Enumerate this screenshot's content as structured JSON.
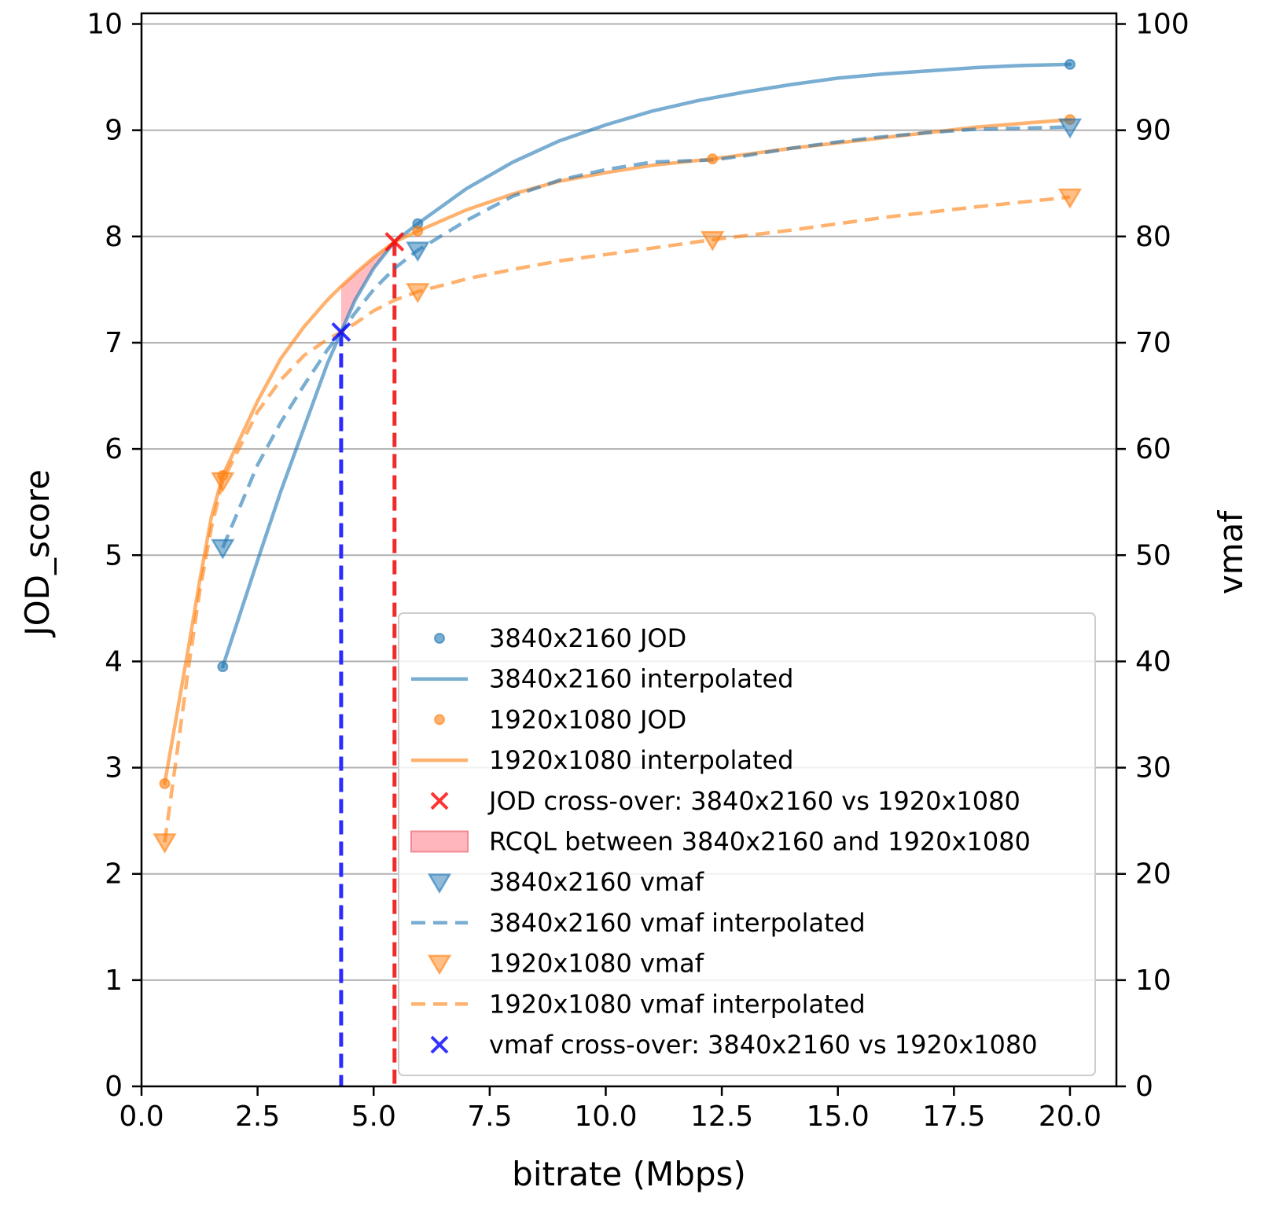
{
  "chart_data": {
    "type": "line",
    "title": "",
    "xlabel": "bitrate (Mbps)",
    "ylabel_left": "JOD_score",
    "ylabel_right": "vmaf",
    "xlim": [
      0.0,
      21.0
    ],
    "ylim_left": [
      0,
      10.1
    ],
    "ylim_right": [
      0,
      101
    ],
    "x_ticks": [
      0.0,
      2.5,
      5.0,
      7.5,
      10.0,
      12.5,
      15.0,
      17.5,
      20.0
    ],
    "x_tick_labels": [
      "0.0",
      "2.5",
      "5.0",
      "7.5",
      "10.0",
      "12.5",
      "15.0",
      "17.5",
      "20.0"
    ],
    "y_left_ticks": [
      0,
      1,
      2,
      3,
      4,
      5,
      6,
      7,
      8,
      9,
      10
    ],
    "y_left_tick_labels": [
      "0",
      "1",
      "2",
      "3",
      "4",
      "5",
      "6",
      "7",
      "8",
      "9",
      "10"
    ],
    "y_right_ticks": [
      0,
      10,
      20,
      30,
      40,
      50,
      60,
      70,
      80,
      90,
      100
    ],
    "y_right_tick_labels": [
      "0",
      "10",
      "20",
      "30",
      "40",
      "50",
      "60",
      "70",
      "80",
      "90",
      "100"
    ],
    "grid": "horizontal",
    "legend_position": "lower-right",
    "colors": {
      "blue": "#1f77b4",
      "orange": "#ff7f0e",
      "red_cross": "#ff0000",
      "blue_cross": "#0000ff",
      "rcql_fill": "#ffb6bd"
    },
    "series": [
      {
        "name": "3840x2160 JOD",
        "kind": "points",
        "axis": "left",
        "color": "#1f77b4",
        "x": [
          1.75,
          5.95,
          20.0
        ],
        "y": [
          3.95,
          8.12,
          9.62
        ]
      },
      {
        "name": "3840x2160 interpolated",
        "kind": "line",
        "axis": "left",
        "color": "#1f77b4",
        "x": [
          1.75,
          2.5,
          3.0,
          3.5,
          4.0,
          4.3,
          4.6,
          5.0,
          5.45,
          5.95,
          7.0,
          8.0,
          9.0,
          10.0,
          11.0,
          12.0,
          13.0,
          14.0,
          15.0,
          16.0,
          17.0,
          18.0,
          19.0,
          20.0
        ],
        "y": [
          3.95,
          4.95,
          5.6,
          6.2,
          6.8,
          7.1,
          7.4,
          7.7,
          7.95,
          8.12,
          8.45,
          8.7,
          8.9,
          9.05,
          9.18,
          9.28,
          9.36,
          9.43,
          9.49,
          9.53,
          9.56,
          9.59,
          9.61,
          9.62
        ]
      },
      {
        "name": "1920x1080 JOD",
        "kind": "points",
        "axis": "left",
        "color": "#ff7f0e",
        "x": [
          0.5,
          1.75,
          5.95,
          12.3,
          20.0
        ],
        "y": [
          2.85,
          5.75,
          8.05,
          8.73,
          9.1
        ]
      },
      {
        "name": "1920x1080 interpolated",
        "kind": "line",
        "axis": "left",
        "color": "#ff7f0e",
        "x": [
          0.5,
          0.8,
          1.0,
          1.25,
          1.5,
          1.75,
          2.5,
          3.0,
          3.5,
          4.0,
          4.3,
          4.6,
          5.0,
          5.45,
          5.95,
          7.0,
          8.0,
          9.0,
          10.0,
          11.0,
          12.3,
          14.0,
          16.0,
          18.0,
          20.0
        ],
        "y": [
          2.85,
          3.6,
          4.1,
          4.75,
          5.35,
          5.75,
          6.45,
          6.85,
          7.15,
          7.4,
          7.53,
          7.65,
          7.8,
          7.95,
          8.05,
          8.25,
          8.4,
          8.52,
          8.6,
          8.67,
          8.73,
          8.83,
          8.93,
          9.03,
          9.1
        ]
      },
      {
        "name": "3840x2160 vmaf",
        "kind": "markers",
        "axis": "right",
        "color": "#1f77b4",
        "x": [
          1.75,
          5.95,
          20.0
        ],
        "y": [
          50.7,
          78.7,
          90.3
        ]
      },
      {
        "name": "3840x2160 vmaf interpolated",
        "kind": "dashed",
        "axis": "right",
        "color": "#1f77b4",
        "x": [
          1.75,
          2.5,
          3.0,
          3.5,
          4.0,
          4.3,
          4.6,
          5.0,
          5.45,
          5.95,
          7.0,
          8.0,
          9.0,
          10.0,
          11.0,
          12.3,
          13.0,
          14.0,
          15.0,
          16.0,
          17.0,
          18.0,
          19.0,
          20.0
        ],
        "y": [
          50.7,
          58.5,
          62.5,
          66.0,
          69.3,
          71.0,
          72.8,
          75.0,
          77.0,
          78.7,
          81.5,
          83.8,
          85.3,
          86.3,
          87.0,
          87.2,
          87.6,
          88.3,
          88.9,
          89.4,
          89.8,
          90.1,
          90.2,
          90.3
        ]
      },
      {
        "name": "1920x1080 vmaf",
        "kind": "markers",
        "axis": "right",
        "color": "#ff7f0e",
        "x": [
          0.5,
          1.75,
          5.95,
          12.3,
          20.0
        ],
        "y": [
          23.0,
          57.0,
          74.8,
          79.7,
          83.7
        ]
      },
      {
        "name": "1920x1080 vmaf interpolated",
        "kind": "dashed",
        "axis": "right",
        "color": "#ff7f0e",
        "x": [
          0.5,
          0.8,
          1.0,
          1.25,
          1.5,
          1.75,
          2.5,
          3.0,
          3.5,
          4.0,
          4.3,
          4.6,
          5.0,
          5.45,
          5.95,
          7.0,
          8.0,
          9.0,
          10.0,
          11.0,
          12.3,
          14.0,
          16.0,
          18.0,
          20.0
        ],
        "y": [
          23.0,
          32.5,
          39.0,
          46.5,
          52.5,
          57.0,
          63.5,
          66.5,
          68.8,
          70.3,
          71.0,
          71.8,
          73.0,
          74.0,
          74.8,
          76.0,
          76.9,
          77.7,
          78.3,
          78.9,
          79.7,
          80.6,
          81.8,
          82.8,
          83.7
        ]
      }
    ],
    "jod_crossover": {
      "name": "JOD cross-over: 3840x2160 vs 1920x1080",
      "x": 5.45,
      "y": 7.95,
      "color": "#ff0000"
    },
    "vmaf_crossover": {
      "name": "vmaf cross-over: 3840x2160 vs 1920x1080",
      "x": 4.3,
      "y": 71.0,
      "color": "#0000ff"
    },
    "rcql": {
      "name": "RCQL between 3840x2160 and 1920x1080",
      "x_from": 4.3,
      "x_to": 5.45
    },
    "legend": [
      "3840x2160 JOD",
      "3840x2160 interpolated",
      "1920x1080 JOD",
      "1920x1080 interpolated",
      "JOD cross-over: 3840x2160 vs 1920x1080",
      "RCQL between 3840x2160 and 1920x1080",
      "3840x2160 vmaf",
      "3840x2160 vmaf interpolated",
      "1920x1080 vmaf",
      "1920x1080 vmaf interpolated",
      "vmaf cross-over: 3840x2160 vs 1920x1080"
    ]
  }
}
